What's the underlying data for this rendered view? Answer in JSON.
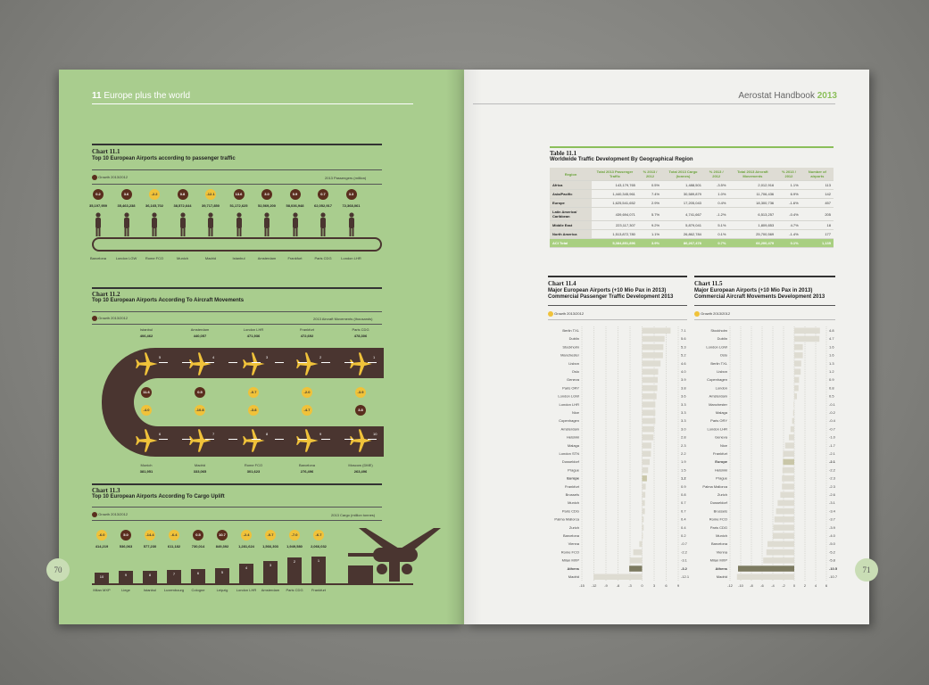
{
  "left": {
    "section_no": "11",
    "section_title": "Europe plus the world",
    "page_number": "70",
    "chart1": {
      "title": "Chart 11.1",
      "subtitle": "Top 10 European Airports according to passenger traffic",
      "legend": "Growth 2013/2012",
      "unit": "2013 Passengers (million)",
      "items": [
        {
          "growth": "0.2",
          "value": "35,197,959",
          "label": "Barcelona"
        },
        {
          "growth": "3.6",
          "value": "35,463,238",
          "label": "London LGW"
        },
        {
          "growth": "-2.2",
          "value": "36,165,702",
          "label": "Rome FCO"
        },
        {
          "growth": "0.8",
          "value": "38,572,644",
          "label": "Munich"
        },
        {
          "growth": "-12.1",
          "value": "39,717,850",
          "label": "Madrid"
        },
        {
          "growth": "13.6",
          "value": "51,172,625",
          "label": "Istanbul"
        },
        {
          "growth": "3.0",
          "value": "52,569,200",
          "label": "Amsterdam"
        },
        {
          "growth": "0.9",
          "value": "58,036,948",
          "label": "Frankfurt"
        },
        {
          "growth": "0.7",
          "value": "62,052,917",
          "label": "Paris CDG"
        },
        {
          "growth": "3.3",
          "value": "72,368,061",
          "label": "London LHR"
        }
      ]
    },
    "chart2": {
      "title": "Chart 11.2",
      "subtitle": "Top 10 European Airports According To Aircraft Movements",
      "legend": "Growth 2013/2012",
      "unit": "2013 Aircraft Movements (thousands)",
      "top": [
        {
          "name": "Istanbul",
          "value": 406,
          "value_text": "406,462",
          "rank": "5",
          "growth": "11.6",
          "growth2": "-4.0"
        },
        {
          "name": "Amsterdam",
          "value": 440,
          "value_text": "440,057",
          "rank": "4",
          "growth": "0.5",
          "growth2": "-10.8"
        },
        {
          "name": "London LHR",
          "value": 471,
          "value_text": "471,936",
          "rank": "3",
          "growth": "-0.7",
          "growth2": "-3.8"
        },
        {
          "name": "Frankfurt",
          "value": 472,
          "value_text": "472,692",
          "rank": "2",
          "growth": "-2.0",
          "growth2": "-4.7"
        },
        {
          "name": "Paris CDG",
          "value": 478,
          "value_text": "478,306",
          "rank": "1",
          "growth": "-3.9",
          "growth2": "3.8"
        }
      ],
      "bottom": [
        {
          "name": "Munich",
          "value_text": "381,951",
          "rank": "6"
        },
        {
          "name": "Madrid",
          "value_text": "333,065",
          "rank": "7"
        },
        {
          "name": "Rome FCO",
          "value_text": "301,623",
          "rank": "8"
        },
        {
          "name": "Barcelona",
          "value_text": "276,496",
          "rank": "9"
        },
        {
          "name": "Moscow (DME)",
          "value_text": "263,496",
          "rank": "10"
        }
      ]
    },
    "chart3": {
      "title": "Chart 11.3",
      "subtitle": "Top 10 European Airports According To Cargo Uplift",
      "legend": "Growth 2013/2012",
      "unit": "2013 Cargo (million tonnes)",
      "items": [
        {
          "growth": "-6.0",
          "value": "414,219",
          "label": "Milan MXP",
          "rank": "10"
        },
        {
          "growth": "5.0",
          "value": "536,063",
          "label": "Liege",
          "rank": "9"
        },
        {
          "growth": "-14.4",
          "value": "577,230",
          "label": "Istanbul",
          "rank": "8"
        },
        {
          "growth": "-6.4",
          "value": "611,182",
          "label": "Luxembourg",
          "rank": "7"
        },
        {
          "growth": "0.5",
          "value": "730,014",
          "label": "Cologne",
          "rank": "6"
        },
        {
          "growth": "10.7",
          "value": "849,392",
          "label": "Leipzig",
          "rank": "5"
        },
        {
          "growth": "-2.4",
          "value": "1,281,624",
          "label": "London LHR",
          "rank": "4"
        },
        {
          "growth": "-0.7",
          "value": "1,566,303",
          "label": "Amsterdam",
          "rank": "3"
        },
        {
          "growth": "-7.0",
          "value": "1,949,580",
          "label": "Paris CDG",
          "rank": "2"
        },
        {
          "growth": "-6.7",
          "value": "2,066,032",
          "label": "Frankfurt",
          "rank": "1"
        }
      ]
    }
  },
  "right": {
    "header_text": "Aerostat Handbook",
    "header_year": "2013",
    "page_number": "71",
    "table": {
      "title": "Table 11.1",
      "subtitle": "Worldwide Traffic Development By Geographical Region",
      "headers": [
        "Region",
        "Total 2013 Passenger Traffic",
        "% 2013 / 2012",
        "Total 2013 Cargo (tonnes)",
        "% 2013 / 2012",
        "Total 2013 Aircraft Movements",
        "% 2013 / 2012",
        "Number of airports"
      ],
      "rows": [
        [
          "Africa",
          "143,179,765",
          "0.5%",
          "1,488,501",
          "-3.5%",
          "2,012,916",
          "1.1%",
          "113"
        ],
        [
          "Asia/Pacific",
          "1,440,345,961",
          "7.4%",
          "30,589,879",
          "1.0%",
          "11,706,436",
          "6.9%",
          "142"
        ],
        [
          "Europe",
          "1,625,541,652",
          "2.9%",
          "17,205,043",
          "0.4%",
          "18,300,736",
          "-1.6%",
          "457"
        ],
        [
          "Latin America/ Caribbean",
          "439,694,071",
          "5.7%",
          "4,741,667",
          "-1.2%",
          "6,513,257",
          "-0.4%",
          "205"
        ],
        [
          "Middle East",
          "223,117,307",
          "9.2%",
          "5,879,041",
          "5.1%",
          "1,809,853",
          "4.7%",
          "18"
        ],
        [
          "North America",
          "1,513,872,780",
          "1.1%",
          "26,862,784",
          "0.1%",
          "25,700,569",
          "-1.4%",
          "177"
        ]
      ],
      "total": [
        "ACI Total",
        "5,384,851,896",
        "3.9%",
        "86,267,478",
        "0.7%",
        "66,200,479",
        "0.1%",
        "1,135"
      ]
    },
    "chart4": {
      "title": "Chart 11.4",
      "subtitle1": "Major European Airports (+10 Mio Pax in 2013)",
      "subtitle2": "Commercial Passenger Traffic Development 2013",
      "legend": "Growth 2013/2012",
      "type": "bar",
      "xlim": [
        -15,
        9
      ],
      "ticks": [
        "-15",
        "-12",
        "-9",
        "-6",
        "-3",
        "0",
        "3",
        "6",
        "9"
      ],
      "categories": [
        "Berlin TXL",
        "Dublin",
        "Stockholm",
        "Manchester",
        "Lisbon",
        "Oslo",
        "Geneva",
        "Paris ORY",
        "London LGW",
        "London LHR",
        "Nice",
        "Copenhagen",
        "Amsterdam",
        "Helsinki",
        "Malaga",
        "London STN",
        "Dusseldorf",
        "Prague",
        "Europe",
        "Frankfurt",
        "Brussels",
        "Munich",
        "Paris CDG",
        "Palma Mallorca",
        "Zurich",
        "Barcelona",
        "Vienna",
        "Rome FCO",
        "Milan MXP",
        "Athens",
        "Madrid"
      ],
      "values": [
        7.1,
        5.6,
        5.3,
        5.2,
        4.6,
        4.0,
        3.9,
        3.8,
        3.6,
        3.3,
        3.3,
        3.3,
        3.0,
        2.8,
        2.3,
        2.2,
        1.9,
        1.5,
        1.2,
        0.9,
        0.8,
        0.7,
        0.7,
        0.4,
        0.4,
        0.2,
        -0.7,
        -2.2,
        -3.1,
        -3.2,
        -12.1
      ],
      "value_labels": [
        "7.1",
        "5.6",
        "5.3",
        "5.2",
        "4.6",
        "4.0",
        "3.9",
        "3.8",
        "3.6",
        "3.3",
        "3.3",
        "3.3",
        "3.0",
        "2.8",
        "2.3",
        "2.2",
        "1.9",
        "1.5",
        "1.2",
        "0.9",
        "0.8",
        "0.7",
        "0.7",
        "0.4",
        "0.4",
        "0.2",
        "-0.7",
        "-2.2",
        "-3.1",
        "-3.2",
        "-12.1"
      ]
    },
    "chart5": {
      "title": "Chart 11.5",
      "subtitle1": "Major European Airports (+10 Mio Pax in 2013)",
      "subtitle2": "Commercial Aircraft Movements Development 2013",
      "legend": "Growth 2013/2012",
      "type": "bar",
      "xlim": [
        -12,
        6
      ],
      "ticks": [
        "-12",
        "-10",
        "-8",
        "-6",
        "-4",
        "-2",
        "0",
        "2",
        "4",
        "6"
      ],
      "categories": [
        "Stockholm",
        "Dublin",
        "London LGW",
        "Oslo",
        "Berlin TXL",
        "Lisbon",
        "Copenhagen",
        "London",
        "Amsterdam",
        "Manchester",
        "Malaga",
        "Paris ORY",
        "London LHR",
        "Geneva",
        "Nice",
        "Frankfurt",
        "Europe",
        "Helsinki",
        "Prague",
        "Palma Mallorca",
        "Zurich",
        "Dusseldorf",
        "Brussels",
        "Rome FCO",
        "Paris CDG",
        "Munich",
        "Barcelona",
        "Vienna",
        "Milan MXP",
        "Athens",
        "Madrid"
      ],
      "values": [
        4.8,
        4.7,
        1.6,
        1.6,
        1.3,
        1.2,
        0.9,
        0.8,
        0.5,
        -0.1,
        -0.2,
        -0.4,
        -0.7,
        -1.0,
        -1.7,
        -2.1,
        -2.1,
        -2.2,
        -2.3,
        -2.3,
        -2.6,
        -3.1,
        -3.4,
        -3.7,
        -3.9,
        -4.0,
        -5.0,
        -5.2,
        -5.8,
        -10.5,
        -10.7
      ],
      "value_labels": [
        "4.8",
        "4.7",
        "1.6",
        "1.6",
        "1.3",
        "1.2",
        "0.9",
        "0.8",
        "0.5",
        "-0.1",
        "-0.2",
        "-0.4",
        "-0.7",
        "-1.0",
        "-1.7",
        "-2.1",
        "-2.1",
        "-2.2",
        "-2.3",
        "-2.3",
        "-2.6",
        "-3.1",
        "-3.4",
        "-3.7",
        "-3.9",
        "-4.0",
        "-5.0",
        "-5.2",
        "-5.8",
        "-10.5",
        "-10.7"
      ]
    }
  },
  "colors": {
    "green_page": "#a9cd8e",
    "accent_green": "#6ba33a",
    "brown": "#4a3530",
    "yellow": "#f0c23a",
    "maroon": "#5a2e1e"
  }
}
